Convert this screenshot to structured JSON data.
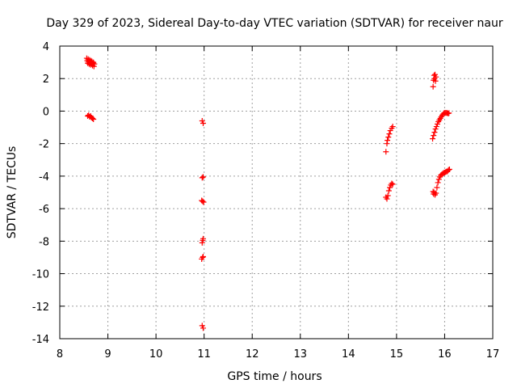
{
  "chart_data": {
    "type": "scatter",
    "title": "Day 329 of 2023, Sidereal Day-to-day VTEC variation (SDTVAR) for receiver naur",
    "xlabel": "GPS time / hours",
    "ylabel": "SDTVAR / TECUs",
    "xlim": [
      8,
      17
    ],
    "ylim": [
      -14,
      4
    ],
    "x_ticks": [
      "8",
      "9",
      "10",
      "11",
      "12",
      "13",
      "14",
      "15",
      "16",
      "17"
    ],
    "y_ticks": [
      "4",
      "2",
      "0",
      "-2",
      "-4",
      "-6",
      "-8",
      "-10",
      "-12",
      "-14"
    ],
    "grid": true,
    "marker": "+",
    "color": "#ff0000",
    "series": [
      {
        "name": "SDTVAR",
        "points": [
          [
            8.56,
            3.25
          ],
          [
            8.57,
            3.1
          ],
          [
            8.58,
            2.95
          ],
          [
            8.59,
            3.2
          ],
          [
            8.6,
            3.05
          ],
          [
            8.61,
            2.9
          ],
          [
            8.62,
            3.15
          ],
          [
            8.63,
            3.0
          ],
          [
            8.64,
            2.85
          ],
          [
            8.65,
            3.1
          ],
          [
            8.66,
            2.95
          ],
          [
            8.67,
            3.05
          ],
          [
            8.68,
            2.8
          ],
          [
            8.69,
            2.95
          ],
          [
            8.7,
            3.0
          ],
          [
            8.71,
            2.75
          ],
          [
            8.72,
            2.9
          ],
          [
            8.58,
            -0.3
          ],
          [
            8.6,
            -0.25
          ],
          [
            8.62,
            -0.35
          ],
          [
            8.64,
            -0.3
          ],
          [
            8.66,
            -0.4
          ],
          [
            8.68,
            -0.45
          ],
          [
            8.7,
            -0.5
          ],
          [
            10.96,
            -0.6
          ],
          [
            10.98,
            -0.75
          ],
          [
            10.96,
            -4.1
          ],
          [
            10.98,
            -4.05
          ],
          [
            10.95,
            -5.5
          ],
          [
            10.97,
            -5.55
          ],
          [
            10.99,
            -5.6
          ],
          [
            10.96,
            -8.1
          ],
          [
            10.97,
            -7.95
          ],
          [
            10.98,
            -7.85
          ],
          [
            10.95,
            -9.1
          ],
          [
            10.97,
            -9.0
          ],
          [
            10.98,
            -8.95
          ],
          [
            10.96,
            -13.2
          ],
          [
            10.98,
            -13.35
          ],
          [
            14.78,
            -2.5
          ],
          [
            14.8,
            -2.0
          ],
          [
            14.81,
            -1.8
          ],
          [
            14.83,
            -1.6
          ],
          [
            14.85,
            -1.4
          ],
          [
            14.87,
            -1.2
          ],
          [
            14.9,
            -1.05
          ],
          [
            14.92,
            -0.95
          ],
          [
            14.78,
            -5.3
          ],
          [
            14.8,
            -5.4
          ],
          [
            14.82,
            -5.2
          ],
          [
            14.84,
            -4.9
          ],
          [
            14.86,
            -4.7
          ],
          [
            14.88,
            -4.55
          ],
          [
            14.9,
            -4.45
          ],
          [
            14.92,
            -4.5
          ],
          [
            15.76,
            1.5
          ],
          [
            15.77,
            1.9
          ],
          [
            15.78,
            2.2
          ],
          [
            15.79,
            2.0
          ],
          [
            15.8,
            2.25
          ],
          [
            15.81,
            1.85
          ],
          [
            15.82,
            2.1
          ],
          [
            15.75,
            -1.7
          ],
          [
            15.77,
            -1.5
          ],
          [
            15.79,
            -1.3
          ],
          [
            15.81,
            -1.1
          ],
          [
            15.83,
            -0.95
          ],
          [
            15.85,
            -0.8
          ],
          [
            15.87,
            -0.65
          ],
          [
            15.89,
            -0.55
          ],
          [
            15.91,
            -0.45
          ],
          [
            15.93,
            -0.35
          ],
          [
            15.95,
            -0.25
          ],
          [
            15.97,
            -0.18
          ],
          [
            15.99,
            -0.12
          ],
          [
            16.01,
            -0.1
          ],
          [
            16.03,
            -0.12
          ],
          [
            16.05,
            -0.1
          ],
          [
            16.07,
            -0.15
          ],
          [
            16.09,
            -0.12
          ],
          [
            15.76,
            -4.95
          ],
          [
            15.77,
            -5.1
          ],
          [
            15.78,
            -5.0
          ],
          [
            15.8,
            -5.15
          ],
          [
            15.82,
            -5.05
          ],
          [
            15.84,
            -4.7
          ],
          [
            15.86,
            -4.4
          ],
          [
            15.88,
            -4.2
          ],
          [
            15.9,
            -4.05
          ],
          [
            15.92,
            -3.95
          ],
          [
            15.94,
            -3.9
          ],
          [
            15.96,
            -3.85
          ],
          [
            15.98,
            -3.8
          ],
          [
            16.0,
            -3.78
          ],
          [
            16.02,
            -3.75
          ],
          [
            16.04,
            -3.72
          ],
          [
            16.06,
            -3.7
          ],
          [
            16.08,
            -3.62
          ],
          [
            16.1,
            -3.58
          ]
        ]
      }
    ]
  }
}
